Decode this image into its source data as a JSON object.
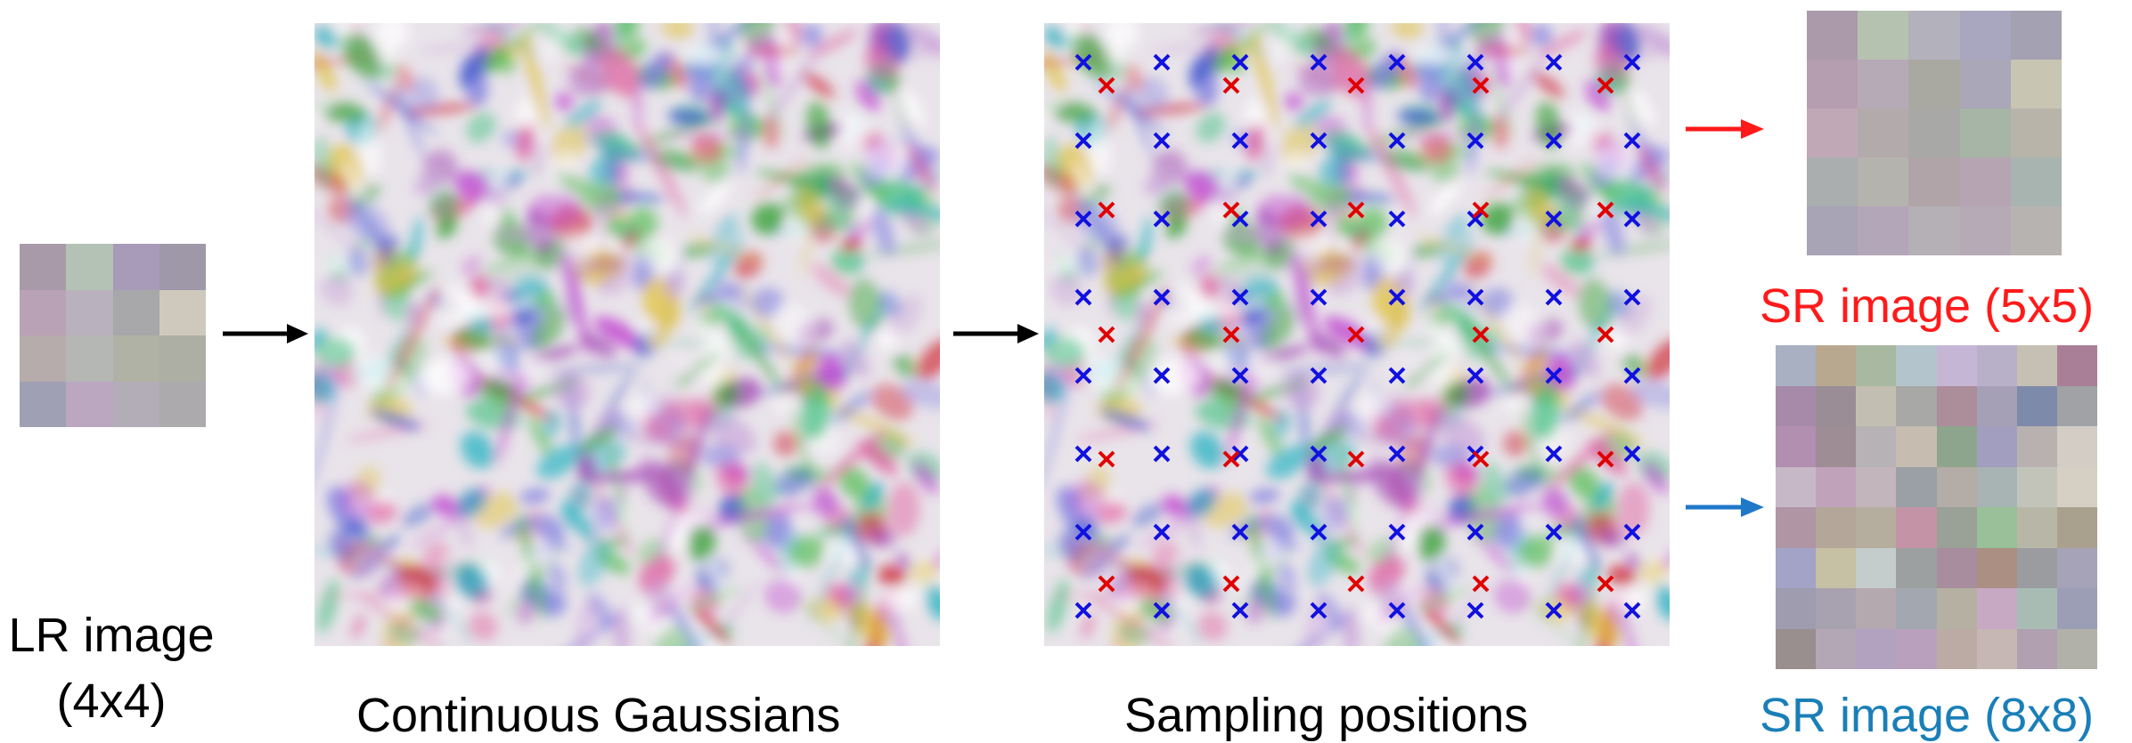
{
  "lr": {
    "label_line1": "LR image",
    "label_line2": "(4x4)",
    "colors": [
      [
        "#a89aa9",
        "#b3c2b4",
        "#a89ab9",
        "#9e98a8"
      ],
      [
        "#baa2b6",
        "#b9b1bd",
        "#a8a7a9",
        "#cfc8bd"
      ],
      [
        "#b6acac",
        "#b4b7b4",
        "#afb2a4",
        "#adaea4"
      ],
      [
        "#9fa0b3",
        "#bca7c1",
        "#b2adb7",
        "#adaaae"
      ]
    ]
  },
  "gaussians": {
    "label": "Continuous Gaussians"
  },
  "sampling": {
    "label": "Sampling positions"
  },
  "sr5": {
    "label": "SR image (5x5)",
    "label_color": "#ff1a1a",
    "arrow_color": "#ff1a1a",
    "colors": [
      [
        "#ab9aa9",
        "#b6c2b0",
        "#b3b1bc",
        "#a9a6bf",
        "#a4a1b2"
      ],
      [
        "#b49eaf",
        "#b6aab6",
        "#a9a9a1",
        "#aaa7b8",
        "#c8c5b3"
      ],
      [
        "#c1a8b7",
        "#b3aaab",
        "#a8a9a6",
        "#a6b5a6",
        "#b8b4a9"
      ],
      [
        "#aaaeaf",
        "#b5b3ae",
        "#b1a4a9",
        "#b7a4b2",
        "#a8b4b0"
      ],
      [
        "#a8a3b5",
        "#b4a6b9",
        "#b4b0b6",
        "#b6aab6",
        "#b6b3b0"
      ]
    ]
  },
  "sr8": {
    "label": "SR image (8x8)",
    "label_color": "#1a7fb8",
    "arrow_color": "#1f78c8",
    "colors": [
      [
        "#a8b0c2",
        "#b8a88f",
        "#a9b8a0",
        "#b3c4cc",
        "#c6b6d6",
        "#b8b0c8",
        "#c6c0b4",
        "#a97f98"
      ],
      [
        "#a78aa9",
        "#9a8d96",
        "#c2bfb2",
        "#a8a8a6",
        "#ac8d9a",
        "#a6a0b6",
        "#7e8aa9",
        "#a0a2a6"
      ],
      [
        "#b28eb0",
        "#9e8d95",
        "#b6b2b6",
        "#c6bcb0",
        "#8da58d",
        "#a29ebf",
        "#b9b1b0",
        "#d3cdc6"
      ],
      [
        "#c7b8c8",
        "#c0a3bb",
        "#c3b5bc",
        "#9aa0a6",
        "#b4aca6",
        "#a8b4b4",
        "#c2c4ba",
        "#d6d0c4"
      ],
      [
        "#b095a5",
        "#b4a799",
        "#b5ad9e",
        "#c493a6",
        "#9aa196",
        "#99c098",
        "#b8b6a6",
        "#aaa08e"
      ],
      [
        "#a3a3c7",
        "#c6c0a4",
        "#c4cccc",
        "#9ca0a0",
        "#a88d9e",
        "#aa8f82",
        "#9b9ca0",
        "#a6a3b8"
      ],
      [
        "#9f9cb0",
        "#a8a2b0",
        "#b5a9b0",
        "#a3a8b0",
        "#b5b0a2",
        "#c7a9c4",
        "#a8bcb4",
        "#9c9eb6"
      ],
      [
        "#998f8e",
        "#b3a7b6",
        "#b2a2c0",
        "#b9a0bc",
        "#bcaaa5",
        "#c7b7b4",
        "#b0a0b0",
        "#b1b1aa"
      ]
    ]
  }
}
